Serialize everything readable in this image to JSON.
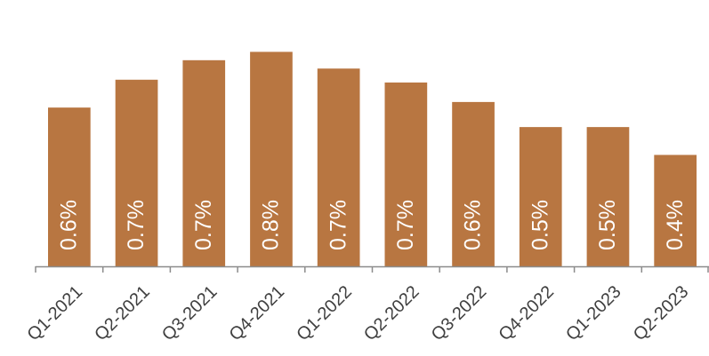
{
  "chart_data": {
    "type": "bar",
    "categories": [
      "Q1-2021",
      "Q2-2021",
      "Q3-2021",
      "Q4-2021",
      "Q1-2022",
      "Q2-2022",
      "Q3-2022",
      "Q4-2022",
      "Q1-2023",
      "Q2-2023"
    ],
    "values": [
      0.57,
      0.67,
      0.74,
      0.77,
      0.71,
      0.66,
      0.59,
      0.5,
      0.5,
      0.4
    ],
    "value_labels": [
      "0.6%",
      "0.7%",
      "0.7%",
      "0.8%",
      "0.7%",
      "0.7%",
      "0.6%",
      "0.5%",
      "0.5%",
      "0.4%"
    ],
    "color": "#b87641",
    "ylim": [
      0,
      0.8
    ]
  }
}
